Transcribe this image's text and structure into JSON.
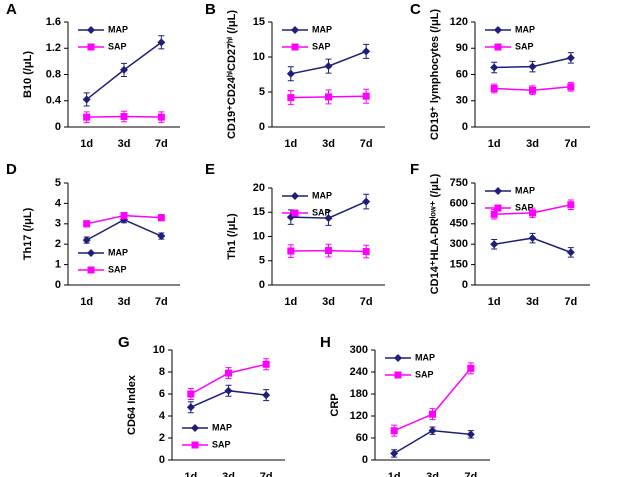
{
  "chart_data": [
    {
      "type": "line",
      "panel": "A",
      "ylabel": "B10 (/μL)",
      "categories": [
        "1d",
        "3d",
        "7d"
      ],
      "ylim": [
        0,
        1.6
      ],
      "yticks": [
        0,
        0.4,
        0.8,
        1.2,
        1.6
      ],
      "legend": "upper left",
      "series": [
        {
          "name": "MAP",
          "color": "#1f1f7a",
          "marker": "diamond",
          "values": [
            0.42,
            0.87,
            1.29
          ],
          "errors": [
            0.1,
            0.1,
            0.1
          ]
        },
        {
          "name": "SAP",
          "color": "#ff00ff",
          "marker": "square",
          "values": [
            0.15,
            0.16,
            0.15
          ],
          "errors": [
            0.08,
            0.08,
            0.08
          ]
        }
      ]
    },
    {
      "type": "line",
      "panel": "B",
      "ylabel": "CD19⁺CD24ʰⁱCD27ʰⁱ (/μL)",
      "categories": [
        "1d",
        "3d",
        "7d"
      ],
      "ylim": [
        0,
        15
      ],
      "yticks": [
        0,
        5,
        10,
        15
      ],
      "legend": "upper left",
      "series": [
        {
          "name": "MAP",
          "color": "#1f1f7a",
          "marker": "diamond",
          "values": [
            7.6,
            8.7,
            10.8
          ],
          "errors": [
            1,
            1,
            1
          ]
        },
        {
          "name": "SAP",
          "color": "#ff00ff",
          "marker": "square",
          "values": [
            4.2,
            4.3,
            4.4
          ],
          "errors": [
            1,
            1,
            1
          ]
        }
      ]
    },
    {
      "type": "line",
      "panel": "C",
      "ylabel": "CD19⁺ lymphocytes (/μL)",
      "categories": [
        "1d",
        "3d",
        "7d"
      ],
      "ylim": [
        0,
        120
      ],
      "yticks": [
        0,
        30,
        60,
        90,
        120
      ],
      "legend": "upper left",
      "series": [
        {
          "name": "MAP",
          "color": "#1f1f7a",
          "marker": "diamond",
          "values": [
            68,
            69,
            79
          ],
          "errors": [
            6,
            6,
            6
          ]
        },
        {
          "name": "SAP",
          "color": "#ff00ff",
          "marker": "square",
          "values": [
            44,
            42,
            46
          ],
          "errors": [
            5,
            5,
            5
          ]
        }
      ]
    },
    {
      "type": "line",
      "panel": "D",
      "ylabel": "Th17 (/μL)",
      "categories": [
        "1d",
        "3d",
        "7d"
      ],
      "ylim": [
        0,
        5
      ],
      "yticks": [
        0,
        1,
        2,
        3,
        4,
        5
      ],
      "legend": "lower left",
      "series": [
        {
          "name": "MAP",
          "color": "#1f1f7a",
          "marker": "diamond",
          "values": [
            2.2,
            3.2,
            2.4
          ],
          "errors": [
            0.15,
            0.15,
            0.15
          ]
        },
        {
          "name": "SAP",
          "color": "#ff00ff",
          "marker": "square",
          "values": [
            3.0,
            3.4,
            3.3
          ],
          "errors": [
            0.15,
            0.15,
            0.15
          ]
        }
      ]
    },
    {
      "type": "line",
      "panel": "E",
      "ylabel": "Th1 (/μL)",
      "categories": [
        "1d",
        "3d",
        "7d"
      ],
      "ylim": [
        0,
        20
      ],
      "yticks": [
        0,
        5,
        10,
        15,
        20
      ],
      "legend": "upper left",
      "series": [
        {
          "name": "MAP",
          "color": "#1f1f7a",
          "marker": "diamond",
          "values": [
            14,
            13.8,
            17.2
          ],
          "errors": [
            1.5,
            1.5,
            1.5
          ]
        },
        {
          "name": "SAP",
          "color": "#ff00ff",
          "marker": "square",
          "values": [
            7,
            7.1,
            6.9
          ],
          "errors": [
            1.3,
            1.3,
            1.3
          ]
        }
      ]
    },
    {
      "type": "line",
      "panel": "F",
      "ylabel": "CD14⁺HLA-DRˡᵒʷ⁺ (/μL)",
      "categories": [
        "1d",
        "3d",
        "7d"
      ],
      "ylim": [
        0,
        750
      ],
      "yticks": [
        0,
        150,
        300,
        450,
        600,
        750
      ],
      "legend": "upper left",
      "series": [
        {
          "name": "MAP",
          "color": "#1f1f7a",
          "marker": "diamond",
          "values": [
            300,
            345,
            240
          ],
          "errors": [
            35,
            35,
            35
          ]
        },
        {
          "name": "SAP",
          "color": "#ff00ff",
          "marker": "square",
          "values": [
            520,
            530,
            590
          ],
          "errors": [
            35,
            35,
            35
          ]
        }
      ]
    },
    {
      "type": "line",
      "panel": "G",
      "ylabel": "CD64 Index",
      "categories": [
        "1d",
        "3d",
        "7d"
      ],
      "ylim": [
        0,
        10
      ],
      "yticks": [
        0,
        2,
        4,
        6,
        8,
        10
      ],
      "legend": "lower left",
      "series": [
        {
          "name": "MAP",
          "color": "#1f1f7a",
          "marker": "diamond",
          "values": [
            4.8,
            6.3,
            5.9
          ],
          "errors": [
            0.5,
            0.5,
            0.5
          ]
        },
        {
          "name": "SAP",
          "color": "#ff00ff",
          "marker": "square",
          "values": [
            6.0,
            7.9,
            8.7
          ],
          "errors": [
            0.5,
            0.5,
            0.5
          ]
        }
      ]
    },
    {
      "type": "line",
      "panel": "H",
      "ylabel": "CRP",
      "categories": [
        "1d",
        "3d",
        "7d"
      ],
      "ylim": [
        0,
        300
      ],
      "yticks": [
        0,
        60,
        120,
        180,
        240,
        300
      ],
      "legend": "upper left",
      "series": [
        {
          "name": "MAP",
          "color": "#1f1f7a",
          "marker": "diamond",
          "values": [
            18,
            80,
            70
          ],
          "errors": [
            10,
            10,
            10
          ]
        },
        {
          "name": "SAP",
          "color": "#ff00ff",
          "marker": "square",
          "values": [
            80,
            125,
            250
          ],
          "errors": [
            15,
            15,
            15
          ]
        }
      ]
    }
  ]
}
